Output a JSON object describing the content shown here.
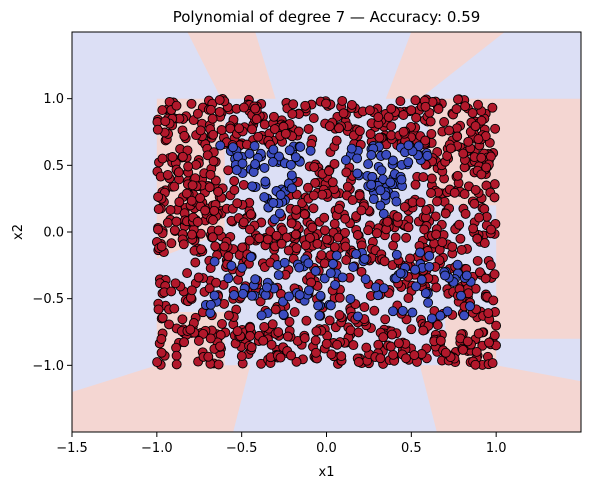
{
  "chart_data": {
    "type": "scatter",
    "title": "Polynomial of degree 7 — Accuracy: 0.59",
    "xlabel": "x1",
    "ylabel": "x2",
    "xlim": [
      -1.5,
      1.5
    ],
    "ylim": [
      -1.5,
      1.5
    ],
    "x_ticks": [
      -1.5,
      -1.0,
      -0.5,
      0.0,
      0.5,
      1.0
    ],
    "x_tick_labels": [
      "−1.5",
      "−1.0",
      "−0.5",
      "0.0",
      "0.5",
      "1.0"
    ],
    "y_ticks": [
      -1.0,
      -0.5,
      0.0,
      0.5,
      1.0
    ],
    "y_tick_labels": [
      "−1.0",
      "−0.5",
      "0.0",
      "0.5",
      "1.0"
    ],
    "grid": false,
    "legend": "none",
    "data_domain": {
      "x": [
        -1.0,
        1.0
      ],
      "y": [
        -1.0,
        1.0
      ]
    },
    "colors": {
      "class_0_point": "#b2182b",
      "class_1_point": "#3b4cc0",
      "class_0_region": "#f4d6d2",
      "class_1_region": "#dcdff5",
      "point_edge": "#000000"
    },
    "classes": [
      {
        "class": 0,
        "description_color": "red"
      },
      {
        "class": 1,
        "description_color": "blue"
      }
    ],
    "class_1_clusters": [
      {
        "shape": "triangle",
        "vertices": [
          [
            -0.65,
            0.65
          ],
          [
            -0.05,
            0.65
          ],
          [
            -0.3,
            0.08
          ]
        ]
      },
      {
        "shape": "triangle",
        "vertices": [
          [
            0.05,
            0.65
          ],
          [
            0.65,
            0.65
          ],
          [
            0.35,
            0.08
          ]
        ]
      },
      {
        "shape": "band",
        "x": [
          -0.75,
          0.85
        ],
        "y": [
          -0.65,
          -0.15
        ]
      }
    ],
    "decision_regions": {
      "class_0": [
        {
          "polygon": [
            [
              -0.82,
              1.5
            ],
            [
              -0.42,
              1.5
            ],
            [
              -0.3,
              1.0
            ],
            [
              -0.62,
              1.0
            ]
          ]
        },
        {
          "polygon": [
            [
              0.5,
              1.5
            ],
            [
              1.05,
              1.5
            ],
            [
              0.55,
              1.0
            ],
            [
              0.35,
              1.0
            ]
          ]
        },
        {
          "polygon": [
            [
              -1.0,
              1.0
            ],
            [
              -0.6,
              1.0
            ],
            [
              -0.6,
              0.0
            ],
            [
              -1.0,
              -0.2
            ]
          ]
        },
        {
          "polygon": [
            [
              0.6,
              1.0
            ],
            [
              1.0,
              1.0
            ],
            [
              1.0,
              0.2
            ],
            [
              0.6,
              0.2
            ]
          ]
        },
        {
          "polygon": [
            [
              -1.0,
              -0.6
            ],
            [
              -0.6,
              -0.6
            ],
            [
              -0.6,
              -1.0
            ],
            [
              -1.0,
              -1.0
            ]
          ]
        },
        {
          "polygon": [
            [
              0.7,
              -0.6
            ],
            [
              1.0,
              -0.6
            ],
            [
              1.0,
              -1.0
            ],
            [
              0.7,
              -1.0
            ]
          ]
        },
        {
          "polygon": [
            [
              -1.5,
              -1.5
            ],
            [
              -1.5,
              -1.2
            ],
            [
              -1.0,
              -1.0
            ],
            [
              -0.45,
              -1.0
            ],
            [
              -0.55,
              -1.5
            ]
          ]
        },
        {
          "polygon": [
            [
              0.65,
              -1.5
            ],
            [
              0.55,
              -1.0
            ],
            [
              1.0,
              -1.0
            ],
            [
              1.5,
              -1.12
            ],
            [
              1.5,
              -1.5
            ]
          ]
        },
        {
          "polygon": [
            [
              1.0,
              1.0
            ],
            [
              1.5,
              1.0
            ],
            [
              1.5,
              -0.8
            ],
            [
              1.0,
              -0.8
            ]
          ]
        }
      ]
    },
    "n_points_approx": 1500
  }
}
